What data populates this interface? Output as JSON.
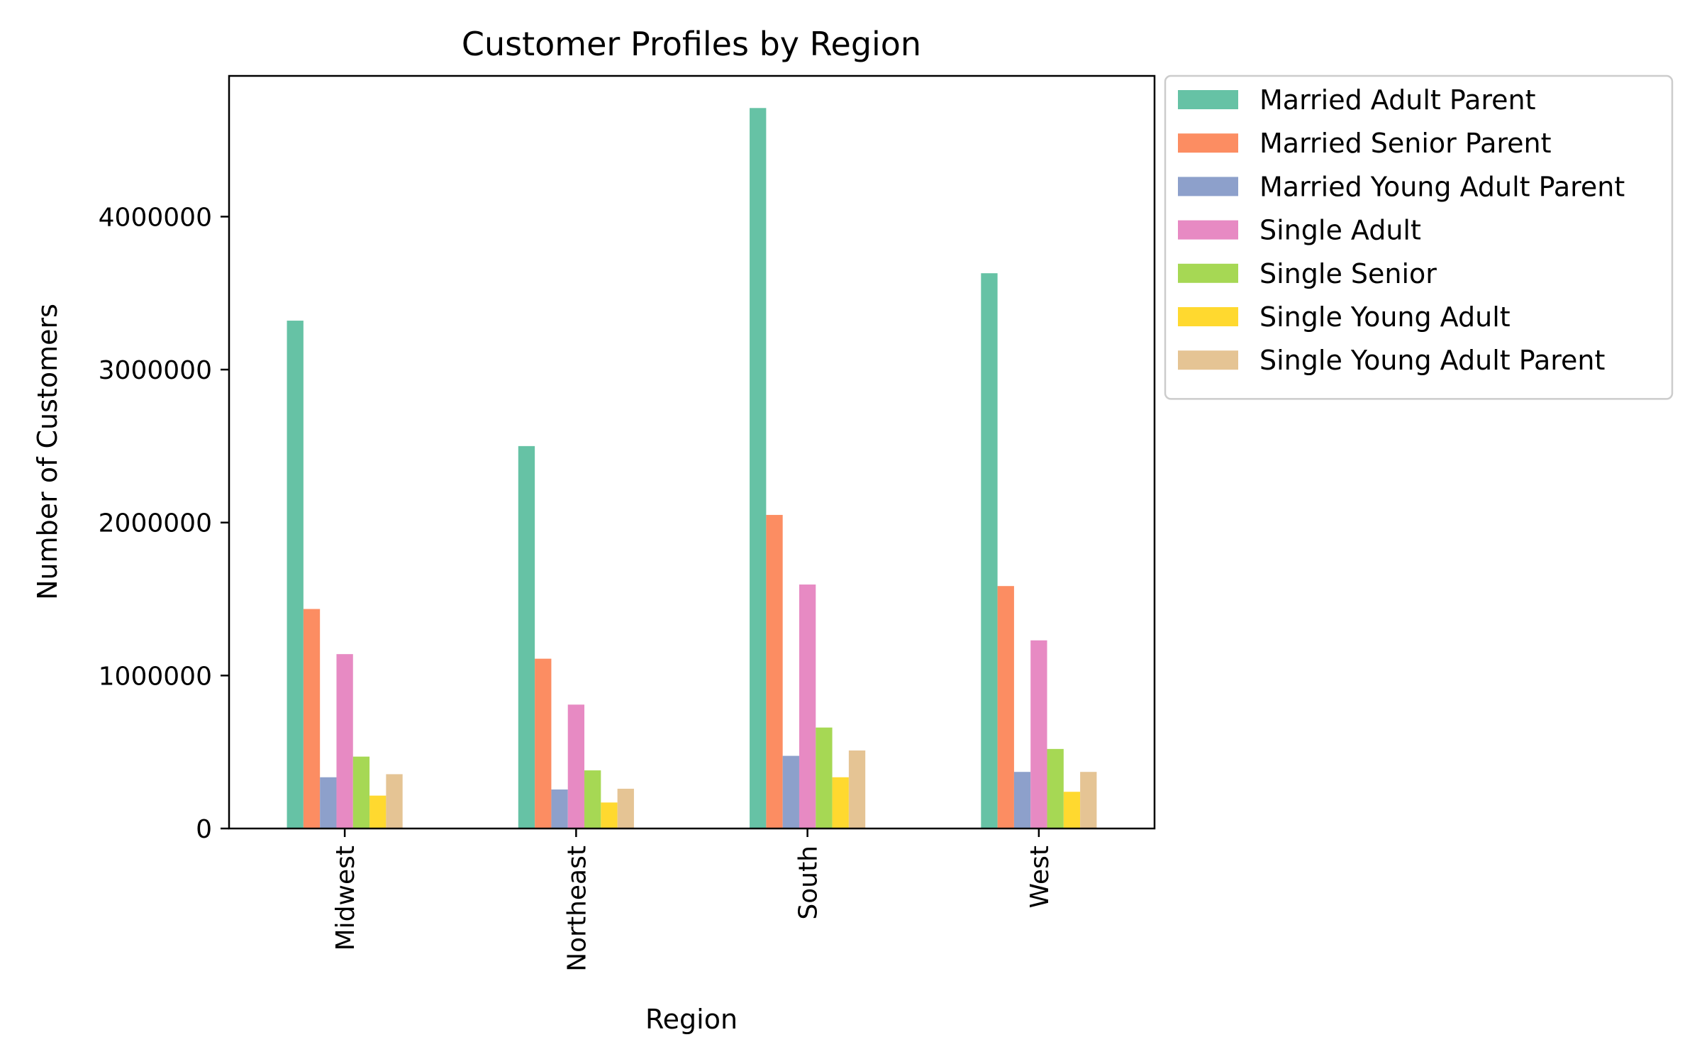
{
  "chart_data": {
    "type": "bar",
    "title": "Customer Profiles by Region",
    "xlabel": "Region",
    "ylabel": "Number of Customers",
    "categories": [
      "Midwest",
      "Northeast",
      "South",
      "West"
    ],
    "ylim": [
      0,
      4920000
    ],
    "yticks": [
      0,
      1000000,
      2000000,
      3000000,
      4000000
    ],
    "ytick_labels": [
      "0",
      "1000000",
      "2000000",
      "3000000",
      "4000000"
    ],
    "grid": false,
    "legend_position": "outside-top-right",
    "series": [
      {
        "name": "Married Adult Parent",
        "color": "#66c2a5",
        "values": [
          3320000,
          2500000,
          4710000,
          3630000
        ]
      },
      {
        "name": "Married Senior Parent",
        "color": "#fc8d62",
        "values": [
          1435000,
          1110000,
          2050000,
          1585000
        ]
      },
      {
        "name": "Married Young Adult Parent",
        "color": "#8da0cb",
        "values": [
          335000,
          255000,
          475000,
          370000
        ]
      },
      {
        "name": "Single Adult",
        "color": "#e78ac3",
        "values": [
          1140000,
          810000,
          1595000,
          1230000
        ]
      },
      {
        "name": "Single Senior",
        "color": "#a6d854",
        "values": [
          470000,
          380000,
          660000,
          520000
        ]
      },
      {
        "name": "Single Young Adult",
        "color": "#ffd92f",
        "values": [
          215000,
          170000,
          335000,
          240000
        ]
      },
      {
        "name": "Single Young Adult Parent",
        "color": "#e5c494",
        "values": [
          355000,
          260000,
          510000,
          370000
        ]
      }
    ]
  }
}
